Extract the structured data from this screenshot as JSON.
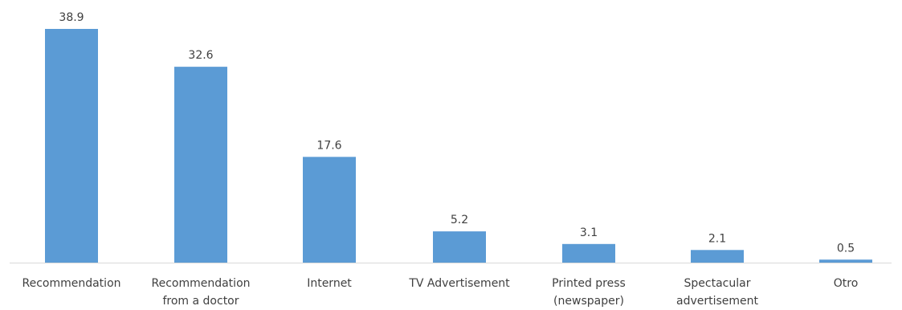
{
  "chart_data": {
    "type": "bar",
    "categories": [
      [
        "Recommendation"
      ],
      [
        "Recommendation",
        "from a doctor"
      ],
      [
        "Internet"
      ],
      [
        "TV Advertisement"
      ],
      [
        "Printed press",
        "(newspaper)"
      ],
      [
        "Spectacular",
        "advertisement"
      ],
      [
        "Otro"
      ]
    ],
    "values": [
      38.9,
      32.6,
      17.6,
      5.2,
      3.1,
      2.1,
      0.5
    ],
    "value_labels": [
      "38.9",
      "32.6",
      "17.6",
      "5.2",
      "3.1",
      "2.1",
      "0.5"
    ],
    "title": "",
    "xlabel": "",
    "ylabel": "",
    "ylim": [
      0,
      38.9
    ],
    "grid": false,
    "legend": "none",
    "bar_color": "#5b9bd5"
  }
}
